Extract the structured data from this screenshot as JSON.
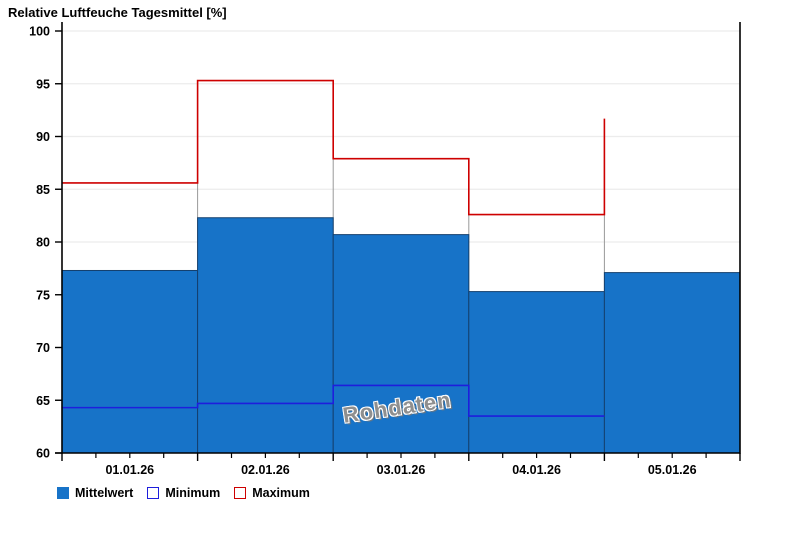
{
  "title": "Relative Luftfeuche Tagesmittel [%]",
  "watermark": "Rohdaten",
  "colors": {
    "bar_fill": "#1773C8",
    "bar_edge": "#14406E",
    "min_line": "#1E1EDC",
    "max_line": "#CE0000",
    "grid": "#ECECEC",
    "connector": "#999999",
    "axis": "#000000",
    "watermark_text": "#8F8F8F"
  },
  "legend": [
    {
      "label": "Mittelwert",
      "swatch": "filled-blue"
    },
    {
      "label": "Minimum",
      "swatch": "outline-blue"
    },
    {
      "label": "Maximum",
      "swatch": "outline-red"
    }
  ],
  "chart_data": {
    "type": "bar",
    "title": "Relative Luftfeuche Tagesmittel [%]",
    "categories": [
      "01.01.26",
      "02.01.26",
      "03.01.26",
      "04.01.26",
      "05.01.26"
    ],
    "series": [
      {
        "name": "Mittelwert",
        "render": "bar",
        "values": [
          77.3,
          82.3,
          80.7,
          75.3,
          77.1
        ]
      },
      {
        "name": "Minimum",
        "render": "step",
        "values": [
          64.3,
          64.7,
          66.4,
          63.5,
          null
        ]
      },
      {
        "name": "Maximum",
        "render": "step",
        "values": [
          85.6,
          95.3,
          87.9,
          82.6,
          null
        ],
        "end_spike": 91.7
      }
    ],
    "ylim": [
      60,
      100
    ],
    "ytick_step": 5,
    "x_minor_ticks_per_day": 3,
    "grid": "horizontal",
    "legend_position": "bottom-left",
    "annotation": "Rohdaten"
  }
}
